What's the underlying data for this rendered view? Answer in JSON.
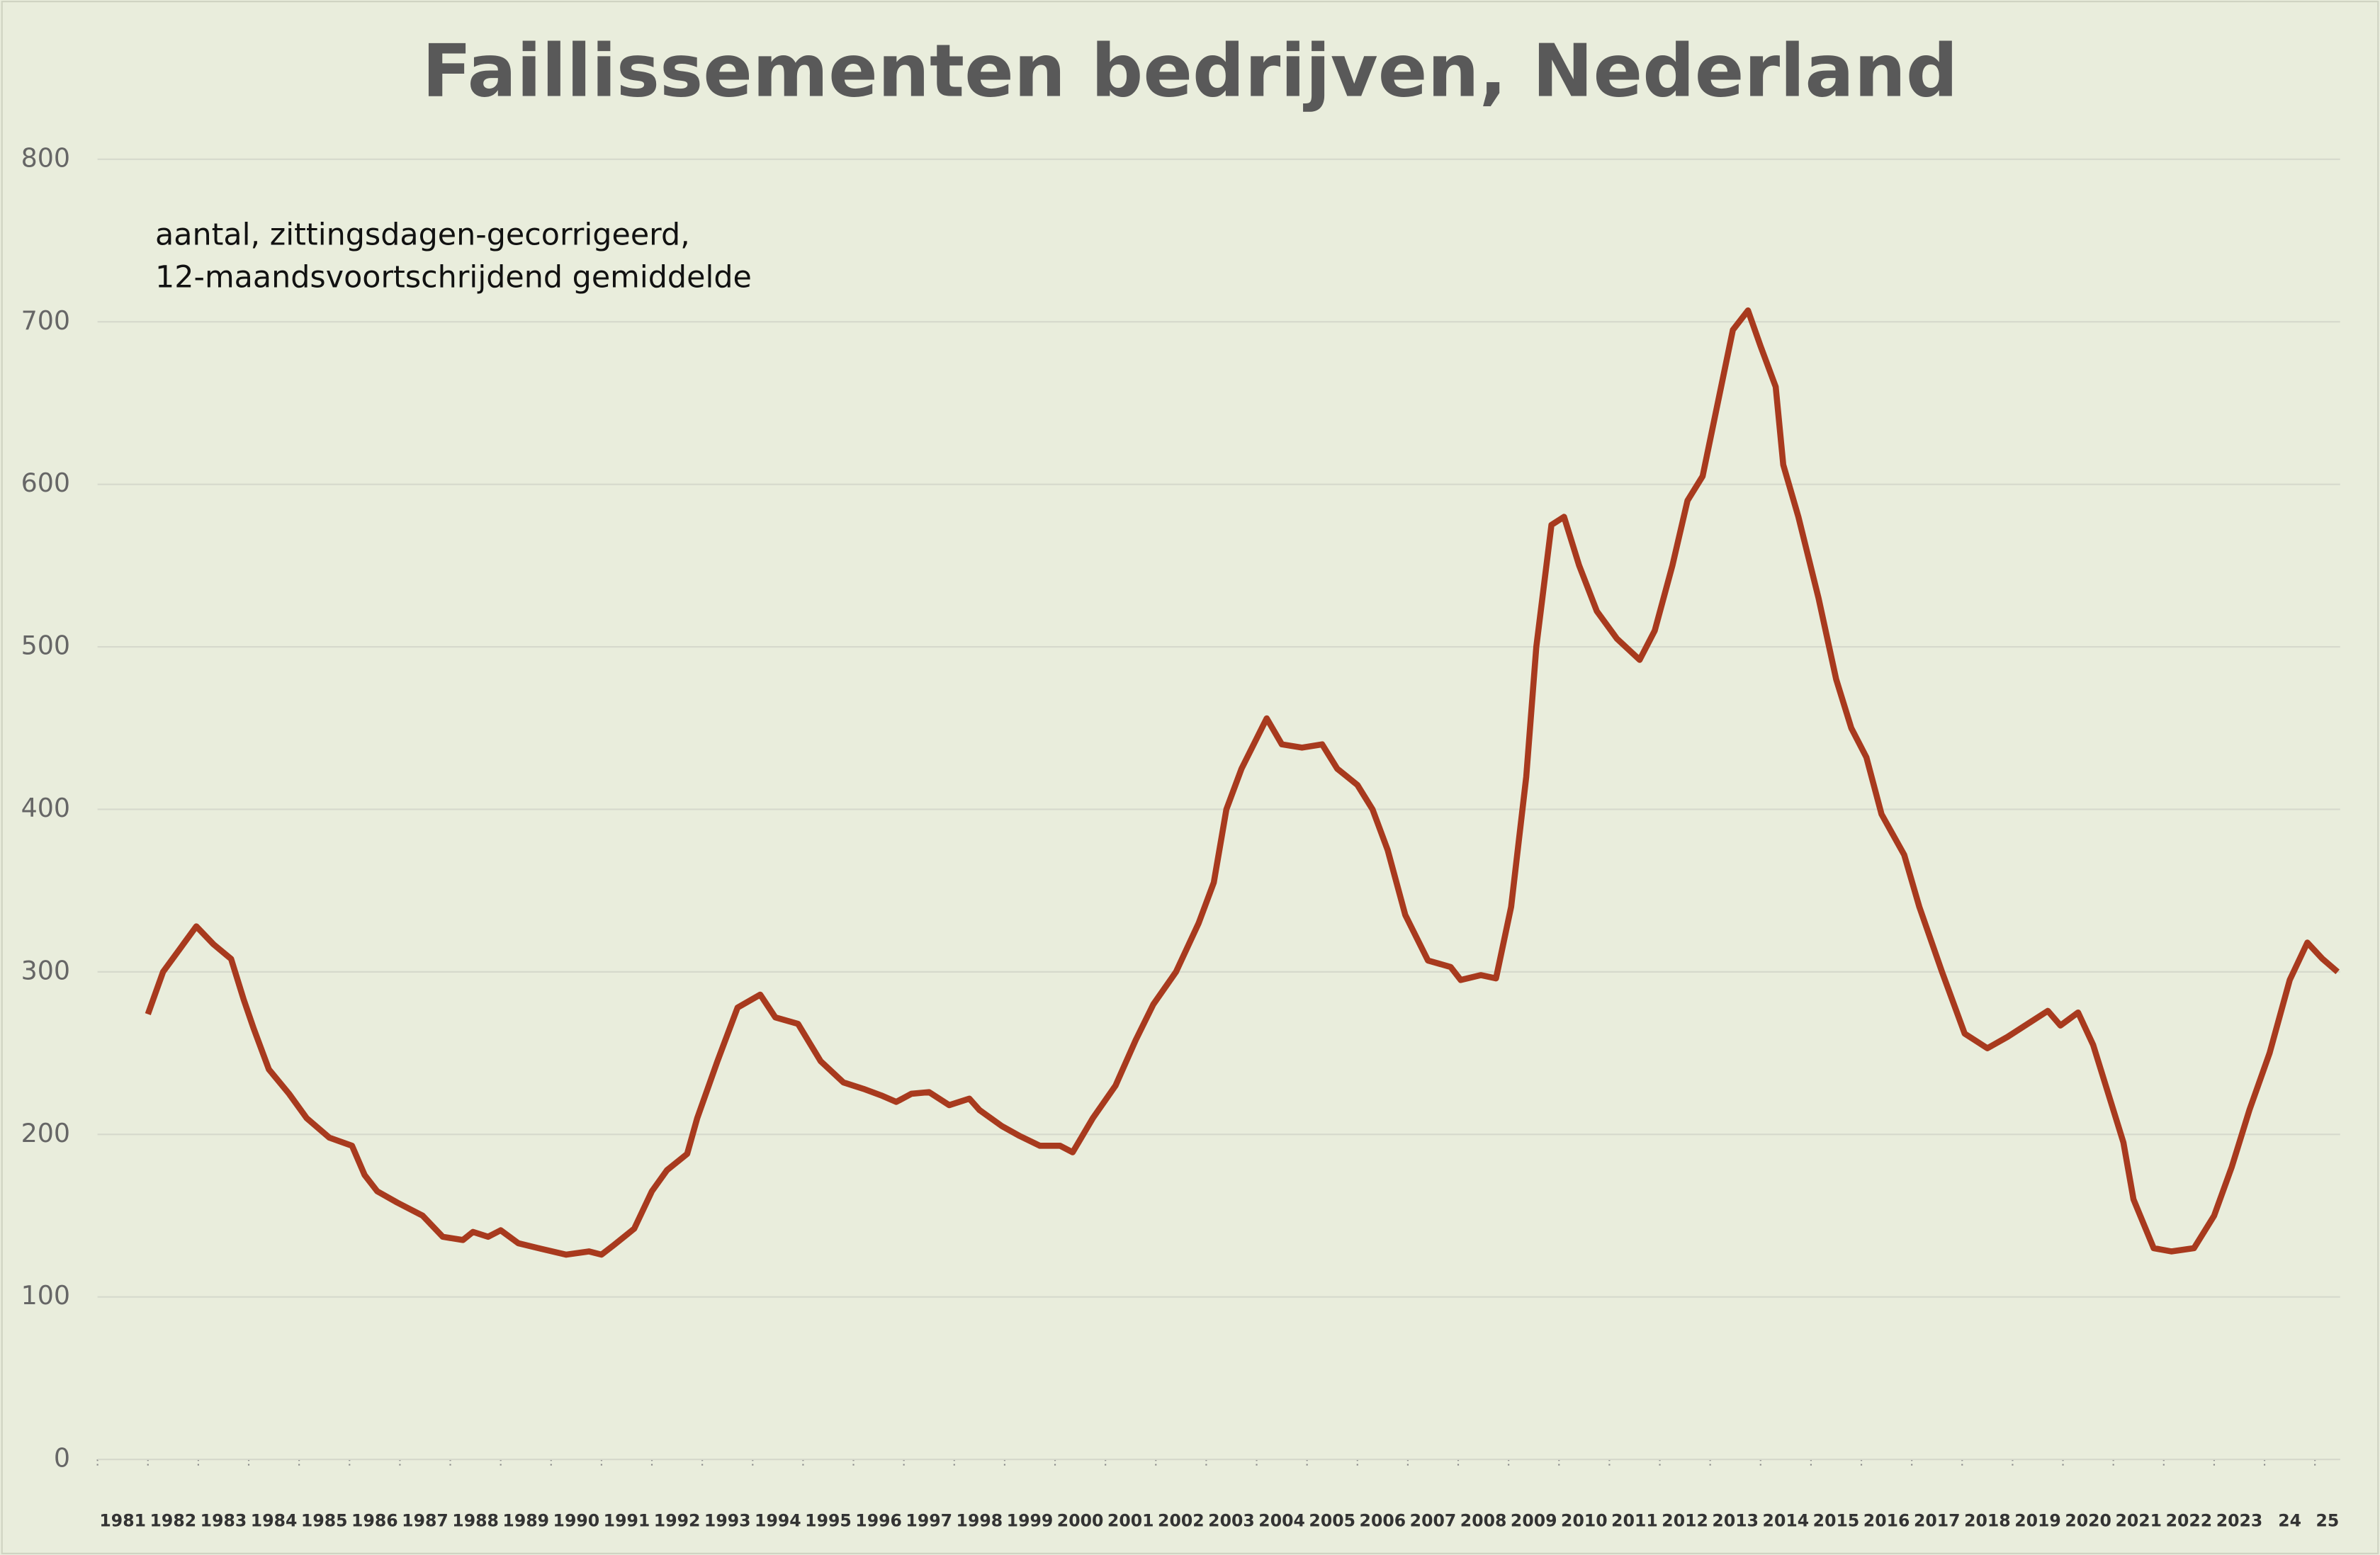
{
  "chart_data": {
    "type": "line",
    "title": "Faillissementen bedrijven, Nederland",
    "subtitle": [
      "aantal, zittingsdagen-gecorrigeerd,",
      "12-maandsvoortschrijdend gemiddelde"
    ],
    "x": [
      1982.0,
      1982.3,
      1982.96,
      1983.3,
      1983.65,
      1983.9,
      1984.1,
      1984.4,
      1984.8,
      1985.15,
      1985.6,
      1986.05,
      1986.3,
      1986.55,
      1986.95,
      1987.45,
      1987.85,
      1988.25,
      1988.45,
      1988.75,
      1989.0,
      1989.35,
      1989.75,
      1990.3,
      1990.75,
      1991.0,
      1991.25,
      1991.65,
      1992.0,
      1992.3,
      1992.7,
      1992.9,
      1993.3,
      1993.7,
      1994.15,
      1994.45,
      1994.9,
      1995.35,
      1995.8,
      1996.2,
      1996.55,
      1996.85,
      1997.15,
      1997.5,
      1997.9,
      1998.3,
      1998.5,
      1998.95,
      1999.3,
      1999.7,
      2000.1,
      2000.35,
      2000.75,
      2001.2,
      2001.6,
      2001.95,
      2002.4,
      2002.85,
      2003.15,
      2003.4,
      2003.7,
      2004.2,
      2004.5,
      2004.9,
      2005.3,
      2005.6,
      2006.0,
      2006.3,
      2006.6,
      2006.95,
      2007.4,
      2007.85,
      2008.05,
      2008.45,
      2008.75,
      2009.05,
      2009.35,
      2009.55,
      2009.85,
      2010.1,
      2010.4,
      2010.75,
      2011.15,
      2011.6,
      2011.9,
      2012.25,
      2012.55,
      2012.85,
      2013.15,
      2013.45,
      2013.75,
      2014.0,
      2014.3,
      2014.45,
      2014.75,
      2015.15,
      2015.5,
      2015.8,
      2016.1,
      2016.4,
      2016.85,
      2017.15,
      2017.6,
      2018.05,
      2018.5,
      2018.9,
      2019.3,
      2019.7,
      2019.95,
      2020.3,
      2020.6,
      2020.95,
      2021.2,
      2021.4,
      2021.8,
      2022.15,
      2022.6,
      2023.0,
      2023.35,
      2023.7,
      2024.1,
      2024.5,
      2024.85,
      2025.15,
      2025.45
    ],
    "series": [
      {
        "name": "Faillissementen",
        "color": "#a83a1e",
        "values": [
          274,
          300,
          328,
          317,
          308,
          283,
          265,
          240,
          225,
          210,
          198,
          193,
          175,
          165,
          158,
          150,
          137,
          135,
          140,
          137,
          141,
          133,
          130,
          126,
          128,
          126,
          132,
          142,
          165,
          178,
          188,
          210,
          245,
          278,
          286,
          272,
          268,
          245,
          232,
          228,
          224,
          220,
          225,
          226,
          218,
          222,
          215,
          205,
          199,
          193,
          193,
          189,
          210,
          230,
          258,
          280,
          300,
          330,
          355,
          400,
          425,
          456,
          440,
          438,
          440,
          425,
          415,
          400,
          375,
          335,
          307,
          303,
          295,
          298,
          296,
          340,
          420,
          500,
          575,
          580,
          550,
          522,
          505,
          492,
          510,
          550,
          590,
          605,
          650,
          695,
          707,
          685,
          660,
          612,
          580,
          530,
          480,
          450,
          432,
          397,
          372,
          340,
          300,
          262,
          253,
          260,
          268,
          276,
          267,
          275,
          255,
          220,
          195,
          160,
          130,
          128,
          130,
          150,
          180,
          215,
          250,
          295,
          318,
          308,
          300
        ]
      }
    ],
    "xlim": [
      1981,
      2025.5
    ],
    "xticks": [
      1981,
      1982,
      1983,
      1984,
      1985,
      1986,
      1987,
      1988,
      1989,
      1990,
      1991,
      1992,
      1993,
      1994,
      1995,
      1996,
      1997,
      1998,
      1999,
      2000,
      2001,
      2002,
      2003,
      2004,
      2005,
      2006,
      2007,
      2008,
      2009,
      2010,
      2011,
      2012,
      2013,
      2014,
      2015,
      2016,
      2017,
      2018,
      2019,
      2020,
      2021,
      2022,
      2023,
      {
        "value": 2024,
        "label": "24"
      },
      {
        "value": 2025,
        "label": "25"
      }
    ],
    "ylim": [
      0,
      800
    ],
    "yticks": [
      0,
      100,
      200,
      300,
      400,
      500,
      600,
      700,
      800
    ],
    "grid": true
  }
}
